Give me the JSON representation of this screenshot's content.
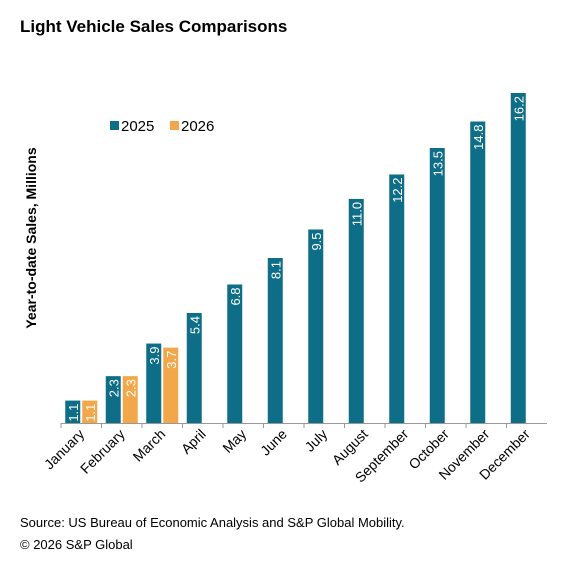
{
  "chart_data": {
    "type": "bar",
    "title": "Light Vehicle Sales Comparisons",
    "y_label": "Year-to-date Sales, Millions",
    "categories": [
      "January",
      "February",
      "March",
      "April",
      "May",
      "June",
      "July",
      "August",
      "September",
      "October",
      "November",
      "December"
    ],
    "series": [
      {
        "name": "2025",
        "color": "#0f6e87",
        "values": [
          1.1,
          2.3,
          3.9,
          5.4,
          6.8,
          8.1,
          9.5,
          11.0,
          12.2,
          13.5,
          14.8,
          16.2
        ],
        "value_labels": [
          "1.1",
          "2.3",
          "3.9",
          "5.4",
          "6.8",
          "8.1",
          "9.5",
          "11.0",
          "12.2",
          "13.5",
          "14.8",
          "16.2"
        ]
      },
      {
        "name": "2026",
        "color": "#f2a84a",
        "values": [
          1.1,
          2.3,
          3.7,
          null,
          null,
          null,
          null,
          null,
          null,
          null,
          null,
          null
        ]
      }
    ],
    "legend": "top-left",
    "notes": [
      "Source: US Bureau of Economic Analysis and S&P Global Mobility.",
      "© 2026 S&P Global"
    ]
  }
}
